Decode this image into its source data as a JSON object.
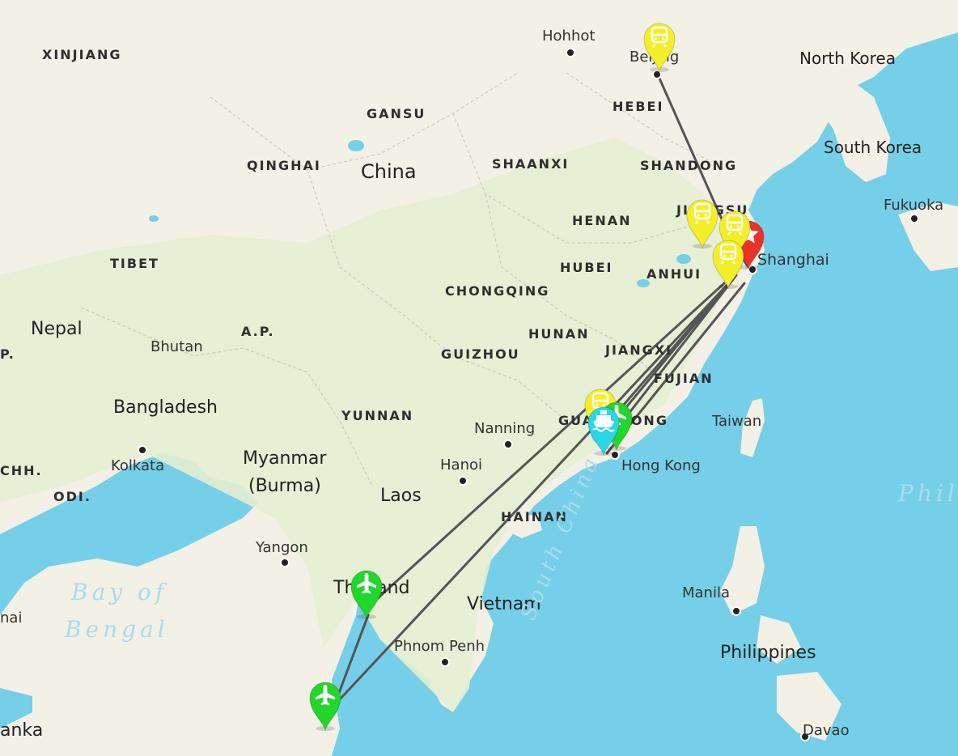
{
  "map": {
    "colors": {
      "water": "#76cfe8",
      "land": "#f3f0e6",
      "green_land": "#e7efd2",
      "route": "#555555",
      "marker_train": "#f4ee2a",
      "marker_flight": "#22d62c",
      "marker_ferry": "#2ad6e8",
      "marker_origin": "#e8322a"
    },
    "labels": {
      "xinjiang": "XINJIANG",
      "hohhot": "Hohhot",
      "beijing": "Beijing",
      "north_korea": "North Korea",
      "gansu": "GANSU",
      "hebei": "HEBEI",
      "south_korea": "South Korea",
      "qinghai": "QINGHAI",
      "china": "China",
      "shaanxi": "SHAANXI",
      "shandong": "SHANDONG",
      "fukuoka": "Fukuoka",
      "henan": "HENAN",
      "jiangsu": "JIANGSU",
      "tibet": "TIBET",
      "hubei": "HUBEI",
      "anhui": "ANHUI",
      "shanghai": "Shanghai",
      "chongqing": "CHONGQING",
      "nepal": "Nepal",
      "ap": "A.P.",
      "p": "P.",
      "bhutan": "Bhutan",
      "hunan": "HUNAN",
      "guizhou": "GUIZHOU",
      "jiangxi": "JIANGXI",
      "fujian": "FUJIAN",
      "bangladesh": "Bangladesh",
      "yunnan": "YUNNAN",
      "guangdong": "GUANGDONG",
      "taiwan": "Taiwan",
      "nanning": "Nanning",
      "myanmar1": "Myanmar",
      "myanmar2": "(Burma)",
      "kolkata": "Kolkata",
      "chh": "CHH.",
      "hanoi": "Hanoi",
      "hong_kong": "Hong Kong",
      "odi": "ODI.",
      "laos": "Laos",
      "hainan": "HAINAN",
      "philippines_sea": "Phil",
      "yangon": "Yangon",
      "south_china_sea": "South China Sea",
      "bay1": "Bay of",
      "bay2": "Bengal",
      "thailand": "Thailand",
      "manila": "Manila",
      "vietnam": "Vietnam",
      "nai": "nai",
      "phnom_penh": "Phnom Penh",
      "philippines": "Philippines",
      "lanka": "anka",
      "davao": "Davao"
    },
    "markers": [
      {
        "id": "beijing-train",
        "type": "train",
        "icon": "train-icon"
      },
      {
        "id": "nanjing-train",
        "type": "train",
        "icon": "train-icon"
      },
      {
        "id": "shanghai-origin",
        "type": "origin",
        "icon": "star-icon"
      },
      {
        "id": "suzhou-train",
        "type": "train",
        "icon": "train-icon"
      },
      {
        "id": "shanghai-train",
        "type": "train",
        "icon": "train-icon"
      },
      {
        "id": "guangzhou-train",
        "type": "train",
        "icon": "train-icon"
      },
      {
        "id": "guangzhou-flight",
        "type": "flight",
        "icon": "airplane-icon"
      },
      {
        "id": "hongkong-ferry",
        "type": "ferry",
        "icon": "ferry-icon"
      },
      {
        "id": "bangkok-flight",
        "type": "flight",
        "icon": "airplane-icon"
      },
      {
        "id": "phuket-flight",
        "type": "flight",
        "icon": "airplane-icon"
      }
    ]
  }
}
